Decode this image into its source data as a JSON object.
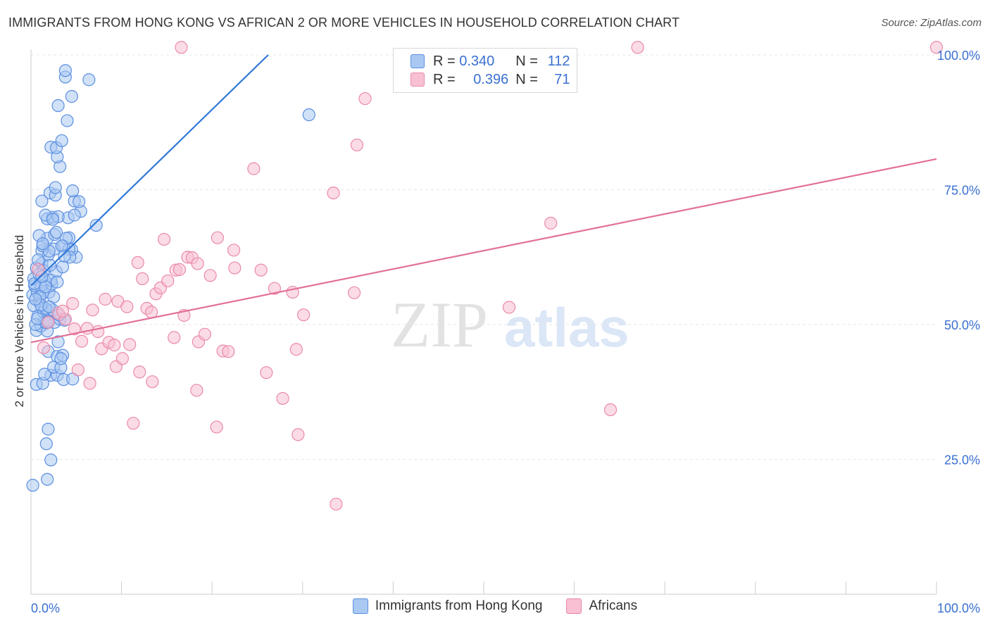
{
  "header": {
    "title": "IMMIGRANTS FROM HONG KONG VS AFRICAN 2 OR MORE VEHICLES IN HOUSEHOLD CORRELATION CHART",
    "source": "Source: ZipAtlas.com"
  },
  "watermark": {
    "zip": "ZIP",
    "atlas": "atlas"
  },
  "legend_top": [
    {
      "r_label": "R =",
      "r_value": "0.340",
      "n_label": "N =",
      "n_value": "112"
    },
    {
      "r_label": "R =",
      "r_value": "0.396",
      "n_label": "N =",
      "n_value": "71"
    }
  ],
  "legend_bottom": [
    {
      "label": "Immigrants from Hong Kong"
    },
    {
      "label": "Africans"
    }
  ],
  "colors": {
    "hk_fill": "#a9c8f2",
    "hk_stroke": "#5b8fe0",
    "hk_line": "#2f78d8",
    "af_fill": "#f8c0d2",
    "af_stroke": "#ea8aa8",
    "af_line": "#e2709a",
    "axis_text": "#3a6fd0",
    "grid": "#e6e6e6"
  },
  "chart_data": {
    "type": "scatter",
    "title": "IMMIGRANTS FROM HONG KONG VS AFRICAN 2 OR MORE VEHICLES IN HOUSEHOLD CORRELATION CHART",
    "xlabel": "",
    "ylabel": "2 or more Vehicles in Household",
    "xlim": [
      0,
      100
    ],
    "ylim": [
      0,
      102
    ],
    "x_tick_labels": [
      "0.0%",
      "100.0%"
    ],
    "y_tick_labels": [
      "25.0%",
      "50.0%",
      "75.0%",
      "100.0%"
    ],
    "y_ticks": [
      25,
      50,
      75,
      100
    ],
    "grid": true,
    "legend_position": "top-center",
    "series": [
      {
        "name": "Immigrants from Hong Kong",
        "r": 0.34,
        "n": 112,
        "trend": {
          "x": [
            0,
            26.2
          ],
          "y": [
            57.2,
            100
          ]
        },
        "points": [
          [
            0.2,
            20.2
          ],
          [
            1.8,
            21.3
          ],
          [
            2.2,
            24.9
          ],
          [
            1.7,
            27.9
          ],
          [
            1.9,
            30.6
          ],
          [
            0.6,
            38.9
          ],
          [
            1.3,
            39.1
          ],
          [
            2.2,
            40.6
          ],
          [
            1.5,
            40.8
          ],
          [
            2.9,
            40.6
          ],
          [
            3.6,
            39.8
          ],
          [
            4.6,
            39.9
          ],
          [
            2.5,
            42.1
          ],
          [
            3.3,
            42.0
          ],
          [
            1.9,
            45.0
          ],
          [
            2.9,
            44.1
          ],
          [
            3.5,
            44.3
          ],
          [
            3.3,
            43.7
          ],
          [
            0.6,
            48.9
          ],
          [
            1.1,
            49.7
          ],
          [
            1.8,
            48.8
          ],
          [
            1.5,
            50.6
          ],
          [
            2.6,
            50.4
          ],
          [
            3.2,
            51.0
          ],
          [
            3.7,
            50.8
          ],
          [
            0.8,
            51.7
          ],
          [
            1.4,
            52.3
          ],
          [
            1.9,
            52.6
          ],
          [
            2.4,
            52.7
          ],
          [
            0.3,
            53.5
          ],
          [
            0.9,
            54.3
          ],
          [
            1.6,
            53.0
          ],
          [
            0.2,
            55.5
          ],
          [
            0.7,
            56.0
          ],
          [
            1.3,
            55.8
          ],
          [
            2.0,
            56.0
          ],
          [
            0.4,
            57.2
          ],
          [
            1.1,
            57.1
          ],
          [
            2.3,
            57.5
          ],
          [
            0.3,
            58.5
          ],
          [
            1.5,
            58.3
          ],
          [
            2.8,
            59.8
          ],
          [
            0.6,
            60.5
          ],
          [
            1.2,
            61.3
          ],
          [
            3.5,
            60.7
          ],
          [
            1.9,
            62.9
          ],
          [
            5.0,
            62.5
          ],
          [
            1.2,
            63.7
          ],
          [
            2.6,
            64.0
          ],
          [
            4.5,
            63.9
          ],
          [
            1.3,
            64.6
          ],
          [
            3.6,
            64.6
          ],
          [
            4.2,
            64.0
          ],
          [
            1.8,
            66.0
          ],
          [
            2.6,
            66.7
          ],
          [
            4.2,
            66.1
          ],
          [
            0.9,
            66.5
          ],
          [
            1.8,
            69.6
          ],
          [
            2.4,
            69.9
          ],
          [
            1.6,
            70.3
          ],
          [
            4.1,
            69.8
          ],
          [
            3.0,
            70.0
          ],
          [
            7.2,
            68.4
          ],
          [
            5.5,
            71.0
          ],
          [
            4.8,
            70.3
          ],
          [
            1.2,
            72.9
          ],
          [
            4.8,
            72.9
          ],
          [
            5.3,
            72.8
          ],
          [
            2.1,
            74.4
          ],
          [
            2.7,
            74.0
          ],
          [
            4.6,
            74.8
          ],
          [
            2.7,
            75.4
          ],
          [
            3.2,
            79.3
          ],
          [
            2.9,
            81.1
          ],
          [
            2.2,
            82.9
          ],
          [
            2.8,
            82.8
          ],
          [
            3.4,
            84.1
          ],
          [
            4.0,
            87.8
          ],
          [
            3.0,
            90.6
          ],
          [
            4.5,
            92.3
          ],
          [
            3.8,
            95.9
          ],
          [
            3.8,
            97.1
          ],
          [
            6.4,
            95.4
          ],
          [
            30.7,
            88.9
          ],
          [
            2.0,
            63.6
          ],
          [
            1.0,
            55.2
          ],
          [
            3.1,
            51.8
          ],
          [
            0.5,
            50.0
          ],
          [
            1.4,
            60.0
          ],
          [
            2.2,
            58.2
          ],
          [
            0.8,
            62.0
          ],
          [
            3.9,
            66.0
          ],
          [
            2.5,
            55.1
          ],
          [
            1.7,
            50.3
          ],
          [
            3.0,
            46.8
          ],
          [
            0.4,
            57.6
          ],
          [
            1.1,
            53.6
          ],
          [
            2.0,
            53.3
          ],
          [
            4.3,
            62.5
          ],
          [
            1.6,
            57.0
          ],
          [
            2.8,
            67.1
          ],
          [
            0.9,
            59.3
          ],
          [
            3.4,
            64.6
          ],
          [
            1.3,
            65.0
          ],
          [
            2.1,
            61.0
          ],
          [
            0.5,
            54.7
          ],
          [
            1.9,
            50.6
          ],
          [
            3.7,
            62.7
          ],
          [
            2.4,
            69.5
          ],
          [
            1.2,
            58.9
          ],
          [
            0.7,
            51.1
          ],
          [
            2.9,
            57.9
          ]
        ]
      },
      {
        "name": "Africans",
        "r": 0.396,
        "n": 71,
        "trend": {
          "x": [
            0,
            100
          ],
          "y": [
            46.7,
            80.7
          ]
        },
        "points": [
          [
            0.8,
            60.2
          ],
          [
            1.4,
            45.7
          ],
          [
            3.0,
            52.1
          ],
          [
            3.8,
            51.0
          ],
          [
            4.6,
            53.9
          ],
          [
            4.8,
            49.2
          ],
          [
            5.2,
            41.6
          ],
          [
            5.6,
            46.9
          ],
          [
            6.2,
            49.3
          ],
          [
            6.5,
            39.1
          ],
          [
            6.8,
            52.7
          ],
          [
            7.4,
            48.7
          ],
          [
            7.8,
            45.5
          ],
          [
            8.2,
            54.7
          ],
          [
            8.6,
            46.7
          ],
          [
            9.2,
            46.2
          ],
          [
            9.4,
            42.2
          ],
          [
            9.6,
            54.3
          ],
          [
            10.6,
            53.3
          ],
          [
            10.9,
            46.3
          ],
          [
            11.3,
            31.7
          ],
          [
            11.8,
            61.5
          ],
          [
            12.0,
            41.2
          ],
          [
            12.3,
            58.5
          ],
          [
            12.8,
            53.0
          ],
          [
            13.3,
            52.3
          ],
          [
            13.4,
            39.4
          ],
          [
            13.8,
            55.7
          ],
          [
            14.3,
            56.8
          ],
          [
            14.7,
            65.8
          ],
          [
            15.1,
            58.1
          ],
          [
            15.8,
            47.6
          ],
          [
            16.0,
            60.1
          ],
          [
            16.4,
            60.2
          ],
          [
            16.9,
            51.7
          ],
          [
            17.3,
            62.5
          ],
          [
            17.8,
            62.4
          ],
          [
            18.4,
            61.3
          ],
          [
            18.5,
            46.8
          ],
          [
            19.2,
            48.2
          ],
          [
            19.8,
            59.1
          ],
          [
            20.6,
            66.1
          ],
          [
            21.2,
            45.1
          ],
          [
            21.8,
            45.0
          ],
          [
            22.4,
            63.8
          ],
          [
            22.5,
            60.5
          ],
          [
            24.6,
            78.9
          ],
          [
            25.4,
            60.1
          ],
          [
            26.0,
            41.1
          ],
          [
            26.9,
            56.7
          ],
          [
            27.8,
            36.3
          ],
          [
            28.9,
            56.0
          ],
          [
            29.3,
            45.4
          ],
          [
            29.5,
            29.6
          ],
          [
            30.1,
            51.8
          ],
          [
            33.4,
            74.4
          ],
          [
            33.7,
            16.7
          ],
          [
            35.7,
            55.9
          ],
          [
            36.0,
            83.3
          ],
          [
            36.9,
            91.9
          ],
          [
            52.8,
            53.2
          ],
          [
            57.4,
            68.8
          ],
          [
            64.0,
            34.2
          ],
          [
            67.0,
            101.4
          ],
          [
            100.0,
            101.4
          ],
          [
            16.6,
            101.4
          ],
          [
            3.5,
            52.5
          ],
          [
            20.5,
            31.0
          ],
          [
            18.3,
            37.8
          ],
          [
            10.1,
            43.7
          ],
          [
            1.9,
            50.4
          ]
        ]
      }
    ]
  }
}
